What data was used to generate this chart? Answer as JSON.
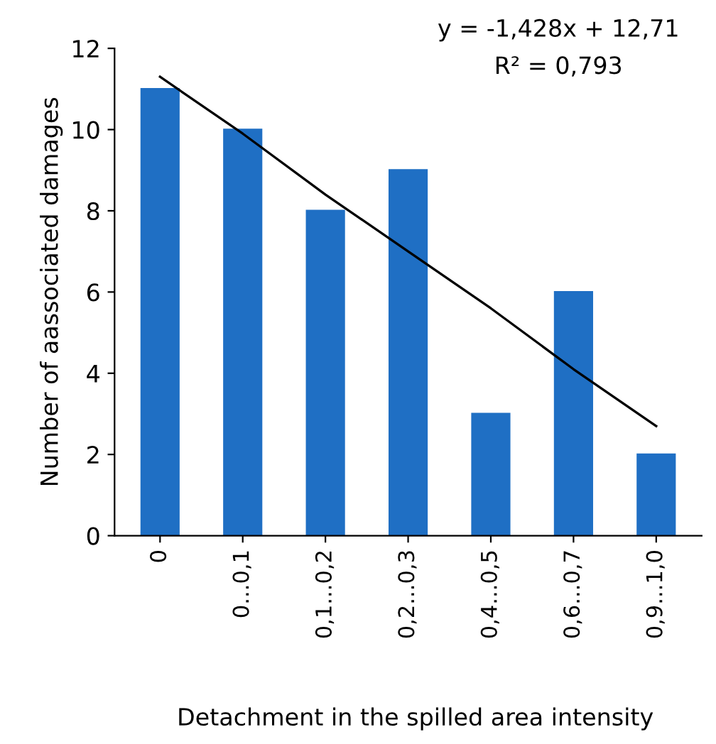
{
  "chart_data": {
    "type": "bar",
    "xlabel": "Detachment in the spilled area intensity",
    "ylabel": "Number of aassociated damages",
    "categories": [
      "0",
      "0...0,1",
      "0,1...0,2",
      "0,2...0,3",
      "0,4...0,5",
      "0,6...0,7",
      "0,9...1,0"
    ],
    "series": [
      {
        "color": "#1f6fc4",
        "values": [
          11,
          10,
          8,
          9,
          3,
          6,
          2
        ]
      },
      {
        "type": "line",
        "color": "#000000",
        "values": [
          11.3,
          9.9,
          8.4,
          7.0,
          5.6,
          4.1,
          2.7
        ]
      }
    ],
    "ylim": [
      0,
      12
    ],
    "yticks": [
      0,
      2,
      4,
      6,
      8,
      10,
      12
    ],
    "grid": false,
    "legend": false,
    "annotations": [
      "y = -1,428x + 12,71",
      "R² = 0,793"
    ]
  }
}
